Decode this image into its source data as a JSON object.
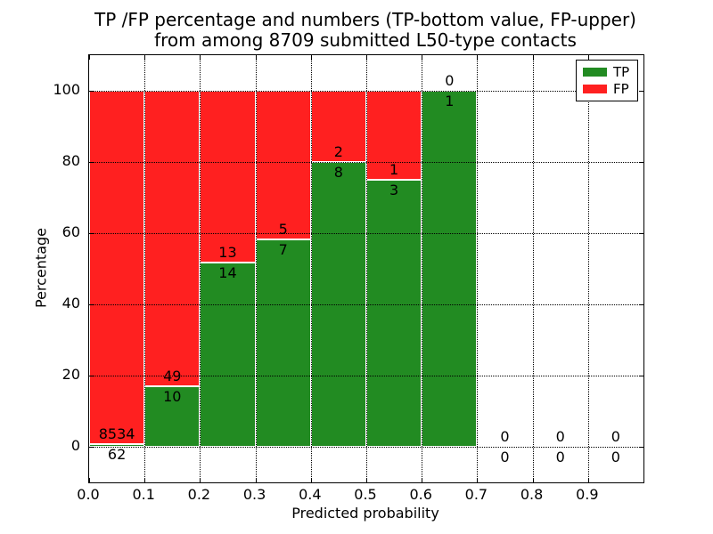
{
  "title": {
    "line1": "TP /FP percentage and numbers (TP-bottom value, FP-upper)",
    "line2": "from among 8709 submitted L50-type contacts"
  },
  "chart_data": {
    "type": "bar",
    "stacked": true,
    "title": "TP /FP percentage and numbers (TP-bottom value, FP-upper) from among 8709 submitted L50-type contacts",
    "xlabel": "Predicted probability",
    "ylabel": "Percentage",
    "bins": [
      0.0,
      0.1,
      0.2,
      0.3,
      0.4,
      0.5,
      0.6,
      0.7,
      0.8,
      0.9
    ],
    "bin_width": 0.1,
    "series": [
      {
        "name": "TP",
        "color": "#228B22",
        "values": [
          62,
          10,
          14,
          7,
          8,
          3,
          1,
          0,
          0,
          0
        ]
      },
      {
        "name": "FP",
        "color": "#FF2020",
        "values": [
          8534,
          49,
          13,
          5,
          2,
          1,
          0,
          0,
          0,
          0
        ]
      }
    ],
    "tp_percent_of_bin": [
      0.72,
      16.95,
      51.85,
      58.33,
      80.0,
      75.0,
      100.0,
      0.0,
      0.0,
      0.0
    ],
    "xlim": [
      0.0,
      1.0
    ],
    "ylim": [
      -10,
      110
    ],
    "yticks": [
      0,
      20,
      40,
      60,
      80,
      100
    ],
    "xtick_labels": [
      "0.0",
      "0.1",
      "0.2",
      "0.3",
      "0.4",
      "0.5",
      "0.6",
      "0.7",
      "0.8",
      "0.9"
    ],
    "grid": "dotted",
    "bar_edge_color": "#ffffff",
    "legend": {
      "position": "upper right",
      "entries": [
        {
          "label": "TP",
          "color": "#228B22"
        },
        {
          "label": "FP",
          "color": "#FF2020"
        }
      ]
    }
  }
}
